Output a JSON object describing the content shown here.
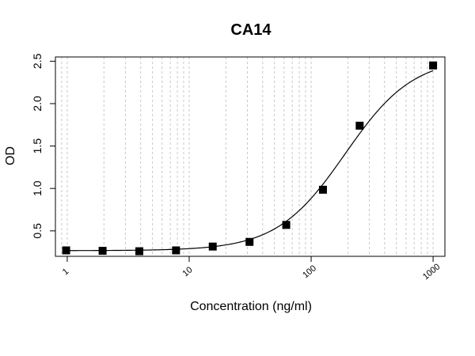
{
  "chart_data": {
    "type": "scatter",
    "title": "CA14",
    "xlabel": "Concentration (ng/ml)",
    "ylabel": "OD",
    "x_scale": "log",
    "xlim": [
      0.8,
      1250
    ],
    "ylim": [
      0.2,
      2.55
    ],
    "x_ticks": [
      1,
      10,
      100,
      1000
    ],
    "x_tick_labels": [
      "1",
      "10",
      "100",
      "1000"
    ],
    "y_ticks": [
      0.5,
      1.0,
      1.5,
      2.0,
      2.5
    ],
    "y_tick_labels": [
      "0.5",
      "1.0",
      "1.5",
      "2.0",
      "2.5"
    ],
    "grid": true,
    "series": [
      {
        "x": [
          0.98,
          1.95,
          3.9,
          7.8,
          15.6,
          31.25,
          62.5,
          125,
          250,
          1000
        ],
        "y": [
          0.27,
          0.265,
          0.26,
          0.27,
          0.315,
          0.37,
          0.57,
          0.985,
          1.74,
          2.45
        ]
      }
    ],
    "fit_curve": {
      "model": "4PL",
      "bottom": 0.267,
      "top": 2.55,
      "ec50": 190,
      "hill": 1.55
    }
  }
}
